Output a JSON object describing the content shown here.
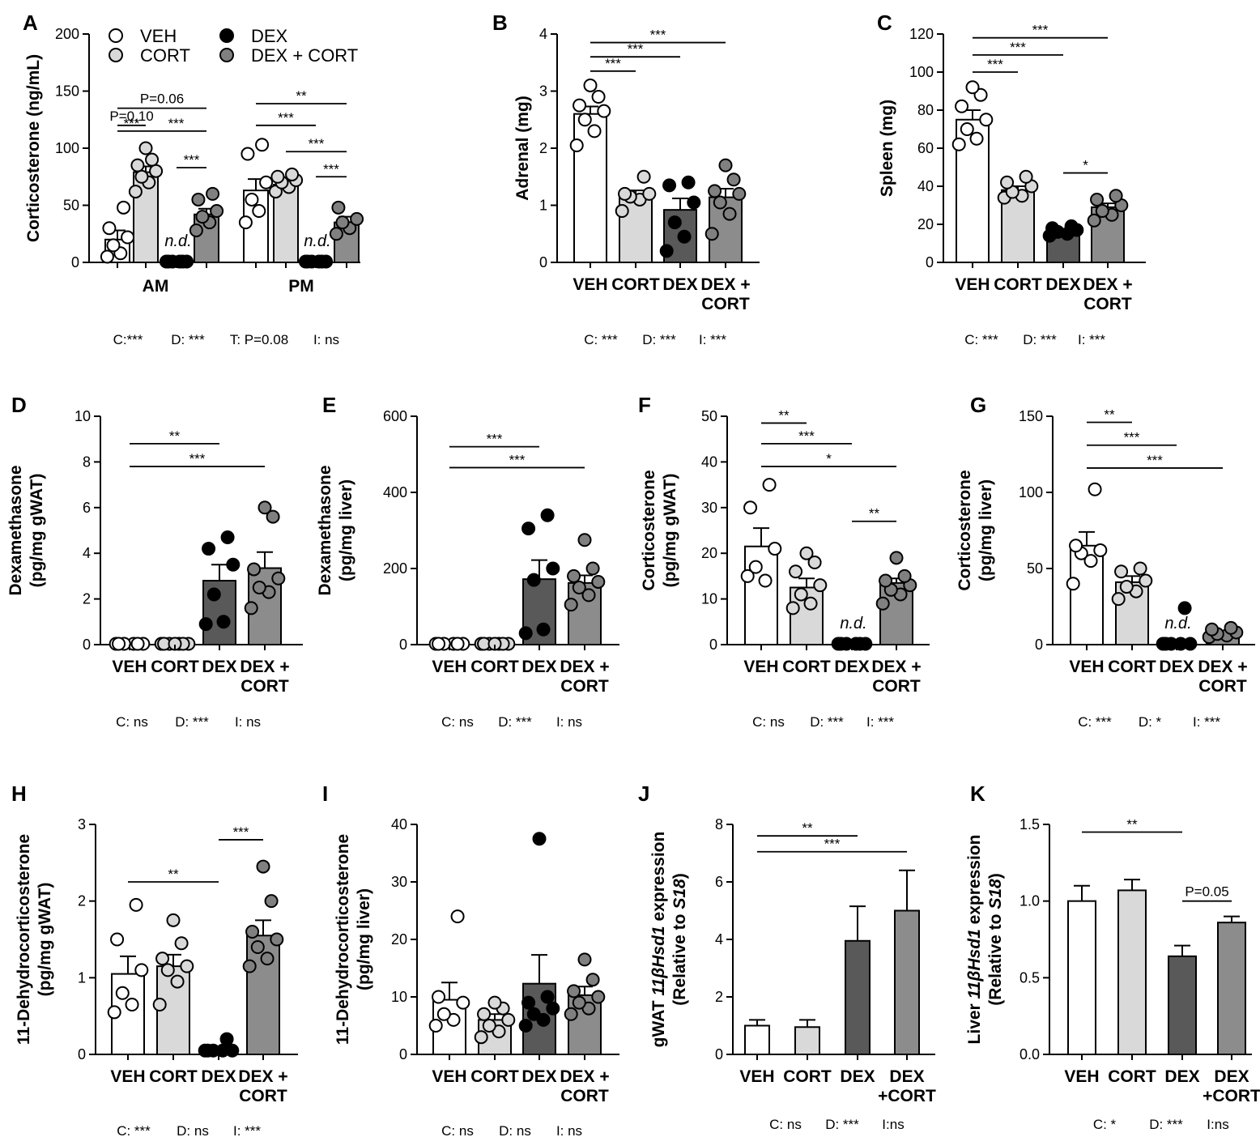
{
  "colors": {
    "VEH": "#ffffff",
    "CORT": "#d9d9d9",
    "DEX": "#595959",
    "DEXCORT": "#8c8c8c",
    "DEXdot": "#000000",
    "DEXCORTdot": "#808080"
  },
  "legend": [
    {
      "label": "VEH",
      "group": "VEH"
    },
    {
      "label": "DEX",
      "group": "DEX"
    },
    {
      "label": "CORT",
      "group": "CORT"
    },
    {
      "label": "DEX + CORT",
      "group": "DEXCORT"
    }
  ],
  "chart_data": [
    {
      "id": "A",
      "type": "bar",
      "ylabel": "Corticosterone (ng/mL)",
      "ylim": [
        0,
        200
      ],
      "yticks": [
        "0",
        "50",
        "100",
        "150",
        "200"
      ],
      "clusters": [
        "AM",
        "PM"
      ],
      "groups": [
        "VEH",
        "CORT",
        "DEX",
        "DEXCORT"
      ],
      "means": [
        [
          20,
          79,
          1,
          42
        ],
        [
          63,
          68,
          1,
          35
        ]
      ],
      "sem": [
        [
          8,
          5,
          0,
          5
        ],
        [
          10,
          4,
          0,
          5
        ]
      ],
      "points": [
        [
          [
            5,
            8,
            15,
            22,
            30,
            48
          ],
          [
            62,
            70,
            75,
            80,
            85,
            90,
            100
          ],
          [
            0,
            0,
            0,
            0,
            0,
            0
          ],
          [
            28,
            35,
            40,
            45,
            55,
            60
          ]
        ],
        [
          [
            35,
            45,
            55,
            70,
            95,
            103
          ],
          [
            62,
            66,
            70,
            72,
            75,
            77
          ],
          [
            0,
            0,
            0,
            0,
            0,
            0
          ],
          [
            25,
            30,
            35,
            38,
            48
          ]
        ]
      ],
      "nd": [
        {
          "cluster": 0,
          "group": 2,
          "label": "n.d."
        },
        {
          "cluster": 1,
          "group": 2,
          "label": "n.d."
        }
      ],
      "sig": [
        {
          "c1": 0,
          "g1": 0,
          "c2": 0,
          "g2": 1,
          "y": 120,
          "label": "P=0.10"
        },
        {
          "c1": 0,
          "g1": 0,
          "c2": 0,
          "g2": 3,
          "y": 135,
          "label": "P=0.06"
        },
        {
          "c1": 0,
          "g1": 0,
          "c2": 0,
          "g2": 1,
          "y": 115,
          "label": "***"
        },
        {
          "c1": 0,
          "g1": 1,
          "c2": 0,
          "g2": 3,
          "y": 115,
          "label": "***"
        },
        {
          "c1": 0,
          "g1": 2,
          "c2": 0,
          "g2": 3,
          "y": 83,
          "label": "***"
        },
        {
          "c1": 1,
          "g1": 0,
          "c2": 1,
          "g2": 3,
          "y": 139,
          "label": "**"
        },
        {
          "c1": 1,
          "g1": 0,
          "c2": 1,
          "g2": 2,
          "y": 120,
          "label": "***"
        },
        {
          "c1": 1,
          "g1": 1,
          "c2": 1,
          "g2": 3,
          "y": 97,
          "label": "***"
        },
        {
          "c1": 1,
          "g1": 2,
          "c2": 1,
          "g2": 3,
          "y": 75,
          "label": "***"
        }
      ],
      "stats": [
        "C:***",
        "D: ***",
        "T: P=0.08",
        "I: ns"
      ]
    },
    {
      "id": "B",
      "type": "bar",
      "ylabel": "Adrenal (mg)",
      "ylim": [
        0,
        4
      ],
      "yticks": [
        "0",
        "1",
        "2",
        "3",
        "4"
      ],
      "categories": [
        "VEH",
        "CORT",
        "DEX",
        "DEX +\nCORT"
      ],
      "values": [
        2.6,
        1.18,
        0.92,
        1.14
      ],
      "sem": [
        0.13,
        0.08,
        0.2,
        0.15
      ],
      "points": [
        [
          2.05,
          2.3,
          2.5,
          2.65,
          2.75,
          2.9,
          3.1
        ],
        [
          0.9,
          1.1,
          1.15,
          1.2,
          1.2,
          1.5
        ],
        [
          0.2,
          0.45,
          0.7,
          1.05,
          1.35,
          1.4
        ],
        [
          0.5,
          0.85,
          1.05,
          1.2,
          1.25,
          1.45,
          1.7
        ]
      ],
      "sig": [
        {
          "g1": 0,
          "g2": 1,
          "y": 3.35,
          "label": "***"
        },
        {
          "g1": 0,
          "g2": 2,
          "y": 3.6,
          "label": "***"
        },
        {
          "g1": 0,
          "g2": 3,
          "y": 3.85,
          "label": "***"
        }
      ],
      "stats": [
        "C: ***",
        "D: ***",
        "I: ***"
      ]
    },
    {
      "id": "C",
      "type": "bar",
      "ylabel": "Spleen (mg)",
      "ylim": [
        0,
        120
      ],
      "yticks": [
        "0",
        "20",
        "40",
        "60",
        "80",
        "100",
        "120"
      ],
      "categories": [
        "VEH",
        "CORT",
        "DEX",
        "DEX +\nCORT"
      ],
      "values": [
        75,
        38,
        16,
        29
      ],
      "sem": [
        5,
        2,
        1,
        2
      ],
      "points": [
        [
          62,
          65,
          70,
          75,
          82,
          88,
          92
        ],
        [
          34,
          35,
          37,
          40,
          42,
          45
        ],
        [
          14,
          15,
          16,
          17,
          18,
          19
        ],
        [
          22,
          25,
          27,
          30,
          33,
          35
        ]
      ],
      "sig": [
        {
          "g1": 0,
          "g2": 1,
          "y": 100,
          "label": "***"
        },
        {
          "g1": 0,
          "g2": 2,
          "y": 109,
          "label": "***"
        },
        {
          "g1": 0,
          "g2": 3,
          "y": 118,
          "label": "***"
        },
        {
          "g1": 2,
          "g2": 3,
          "y": 47,
          "label": "*"
        }
      ],
      "stats": [
        "C: ***",
        "D: ***",
        "I: ***"
      ]
    },
    {
      "id": "D",
      "type": "bar",
      "ylabel": "Dexamethasone\n(pg/mg gWAT)",
      "ylim": [
        0,
        10
      ],
      "yticks": [
        "0",
        "2",
        "4",
        "6",
        "8",
        "10"
      ],
      "categories": [
        "VEH",
        "CORT",
        "DEX",
        "DEX +\nCORT"
      ],
      "values": [
        0,
        0,
        2.8,
        3.35
      ],
      "sem": [
        0,
        0,
        0.7,
        0.7
      ],
      "points": [
        [
          0,
          0,
          0,
          0,
          0,
          0
        ],
        [
          0,
          0,
          0,
          0,
          0,
          0,
          0
        ],
        [
          0.9,
          1.0,
          2.2,
          3.5,
          4.2,
          4.7
        ],
        [
          1.6,
          2.3,
          2.5,
          2.9,
          3.3,
          5.6,
          6.0
        ]
      ],
      "sig": [
        {
          "g1": 0,
          "g2": 2,
          "y": 8.8,
          "label": "**"
        },
        {
          "g1": 0,
          "g2": 3,
          "y": 7.8,
          "label": "***"
        }
      ],
      "stats": [
        "C: ns",
        "D: ***",
        "I: ns"
      ]
    },
    {
      "id": "E",
      "type": "bar",
      "ylabel": "Dexamethasone\n(pg/mg liver)",
      "ylim": [
        0,
        600
      ],
      "yticks": [
        "0",
        "200",
        "400",
        "600"
      ],
      "categories": [
        "VEH",
        "CORT",
        "DEX",
        "DEX +\nCORT"
      ],
      "values": [
        0,
        0,
        172,
        162
      ],
      "sem": [
        0,
        0,
        50,
        20
      ],
      "points": [
        [
          0,
          0,
          0,
          0,
          0,
          0
        ],
        [
          0,
          0,
          0,
          0,
          0,
          0,
          0
        ],
        [
          30,
          40,
          170,
          200,
          305,
          340
        ],
        [
          105,
          130,
          150,
          165,
          180,
          200,
          275
        ]
      ],
      "sig": [
        {
          "g1": 0,
          "g2": 2,
          "y": 520,
          "label": "***"
        },
        {
          "g1": 0,
          "g2": 3,
          "y": 465,
          "label": "***"
        }
      ],
      "stats": [
        "C: ns",
        "D: ***",
        "I: ns"
      ]
    },
    {
      "id": "F",
      "type": "bar",
      "ylabel": "Corticosterone\n(pg/mg gWAT)",
      "ylim": [
        0,
        50
      ],
      "yticks": [
        "0",
        "10",
        "20",
        "30",
        "40",
        "50"
      ],
      "categories": [
        "VEH",
        "CORT",
        "DEX",
        "DEX +\nCORT"
      ],
      "values": [
        21.5,
        12.5,
        0.3,
        13.5
      ],
      "sem": [
        4,
        2,
        0,
        1
      ],
      "points": [
        [
          15,
          14,
          17,
          21,
          30,
          35
        ],
        [
          8,
          9,
          11,
          13,
          16,
          18,
          20
        ],
        [
          0,
          0,
          0,
          0,
          0,
          0
        ],
        [
          9,
          11,
          12,
          13,
          14,
          15,
          19
        ]
      ],
      "nd": [
        {
          "group": 2,
          "label": "n.d."
        }
      ],
      "sig": [
        {
          "g1": 0,
          "g2": 1,
          "y": 48.5,
          "label": "**"
        },
        {
          "g1": 0,
          "g2": 2,
          "y": 44,
          "label": "***"
        },
        {
          "g1": 0,
          "g2": 3,
          "y": 39,
          "label": "*"
        },
        {
          "g1": 2,
          "g2": 3,
          "y": 27,
          "label": "**"
        }
      ],
      "stats": [
        "C: ns",
        "D: ***",
        "I: ***"
      ]
    },
    {
      "id": "G",
      "type": "bar",
      "ylabel": "Corticosterone\n(pg/mg liver)",
      "ylim": [
        0,
        150
      ],
      "yticks": [
        "0",
        "50",
        "100",
        "150"
      ],
      "categories": [
        "VEH",
        "CORT",
        "DEX",
        "DEX +\nCORT"
      ],
      "values": [
        65,
        41,
        0,
        8
      ],
      "sem": [
        9,
        4,
        0,
        1
      ],
      "points": [
        [
          40,
          55,
          60,
          62,
          65,
          102
        ],
        [
          30,
          35,
          38,
          42,
          48,
          50
        ],
        [
          0,
          0,
          0,
          0,
          0,
          24
        ],
        [
          5,
          6,
          7,
          8,
          10,
          11
        ]
      ],
      "nd": [
        {
          "group": 2,
          "label": "n.d."
        }
      ],
      "sig": [
        {
          "g1": 0,
          "g2": 1,
          "y": 146,
          "label": "**"
        },
        {
          "g1": 0,
          "g2": 2,
          "y": 131,
          "label": "***"
        },
        {
          "g1": 0,
          "g2": 3,
          "y": 116,
          "label": "***"
        }
      ],
      "stats": [
        "C: ***",
        "D: *",
        "I: ***"
      ]
    },
    {
      "id": "H",
      "type": "bar",
      "ylabel": "11-Dehydrocorticosterone\n(pg/mg gWAT)",
      "ylim": [
        0,
        3
      ],
      "yticks": [
        "0",
        "1",
        "2",
        "3"
      ],
      "categories": [
        "VEH",
        "CORT",
        "DEX",
        "DEX +\nCORT"
      ],
      "values": [
        1.05,
        1.15,
        0.05,
        1.55
      ],
      "sem": [
        0.23,
        0.15,
        0.03,
        0.2
      ],
      "points": [
        [
          0.55,
          0.65,
          0.8,
          1.1,
          1.5,
          1.95
        ],
        [
          0.65,
          0.95,
          1.1,
          1.15,
          1.25,
          1.45,
          1.75
        ],
        [
          0.05,
          0.05,
          0.05,
          0.05,
          0.05,
          0.2
        ],
        [
          1.15,
          1.25,
          1.4,
          1.5,
          1.6,
          2.0,
          2.45
        ]
      ],
      "sig": [
        {
          "g1": 0,
          "g2": 2,
          "y": 2.25,
          "label": "**"
        },
        {
          "g1": 2,
          "g2": 3,
          "y": 2.8,
          "label": "***"
        }
      ],
      "stats": [
        "C: ***",
        "D: ns",
        "I: ***"
      ]
    },
    {
      "id": "I",
      "type": "bar",
      "ylabel": "11-Dehydrocorticosterone\n(pg/mg liver)",
      "ylim": [
        0,
        40
      ],
      "yticks": [
        "0",
        "10",
        "20",
        "30",
        "40"
      ],
      "categories": [
        "VEH",
        "CORT",
        "DEX",
        "DEX +\nCORT"
      ],
      "values": [
        9.5,
        6,
        12.3,
        10.3
      ],
      "sem": [
        3,
        1,
        5,
        1.5
      ],
      "points": [
        [
          5,
          6,
          7,
          9,
          10,
          24
        ],
        [
          3,
          4,
          5,
          6,
          7,
          8,
          9
        ],
        [
          5,
          6,
          7,
          8,
          9,
          10,
          37.5
        ],
        [
          7,
          8,
          9,
          10,
          11,
          13,
          16.5
        ]
      ],
      "sig": [],
      "stats": [
        "C: ns",
        "D: ns",
        "I: ns"
      ]
    },
    {
      "id": "J",
      "type": "bar",
      "ylabel": "gWAT 11βHsd1 expression\n(Relative to S18)",
      "italic_parts": [
        "11βHsd1",
        "S18"
      ],
      "ylim": [
        0,
        8
      ],
      "yticks": [
        "0",
        "2",
        "4",
        "6",
        "8"
      ],
      "categories": [
        "VEH",
        "CORT",
        "DEX",
        "DEX\n+CORT"
      ],
      "values": [
        1,
        0.95,
        3.95,
        5
      ],
      "sem": [
        0.2,
        0.25,
        1.2,
        1.4
      ],
      "sig": [
        {
          "g1": 0,
          "g2": 2,
          "y": 7.6,
          "label": "**"
        },
        {
          "g1": 0,
          "g2": 3,
          "y": 7.05,
          "label": "***"
        }
      ],
      "stats": [
        "C: ns",
        "D: ***",
        "I:ns"
      ]
    },
    {
      "id": "K",
      "type": "bar",
      "ylabel": "Liver 11βHsd1 expression\n(Relative to S18)",
      "italic_parts": [
        "11βHsd1",
        "S18"
      ],
      "ylim": [
        0,
        1.5
      ],
      "yticks": [
        "0.0",
        "0.5",
        "1.0",
        "1.5"
      ],
      "categories": [
        "VEH",
        "CORT",
        "DEX",
        "DEX\n+CORT"
      ],
      "values": [
        1.0,
        1.07,
        0.64,
        0.86
      ],
      "sem": [
        0.1,
        0.07,
        0.07,
        0.04
      ],
      "sig": [
        {
          "g1": 0,
          "g2": 2,
          "y": 1.45,
          "label": "**"
        },
        {
          "g1": 2,
          "g2": 3,
          "y": 1.0,
          "label": "P=0.05"
        }
      ],
      "stats": [
        "C: *",
        "D: ***",
        "I:ns"
      ]
    }
  ]
}
